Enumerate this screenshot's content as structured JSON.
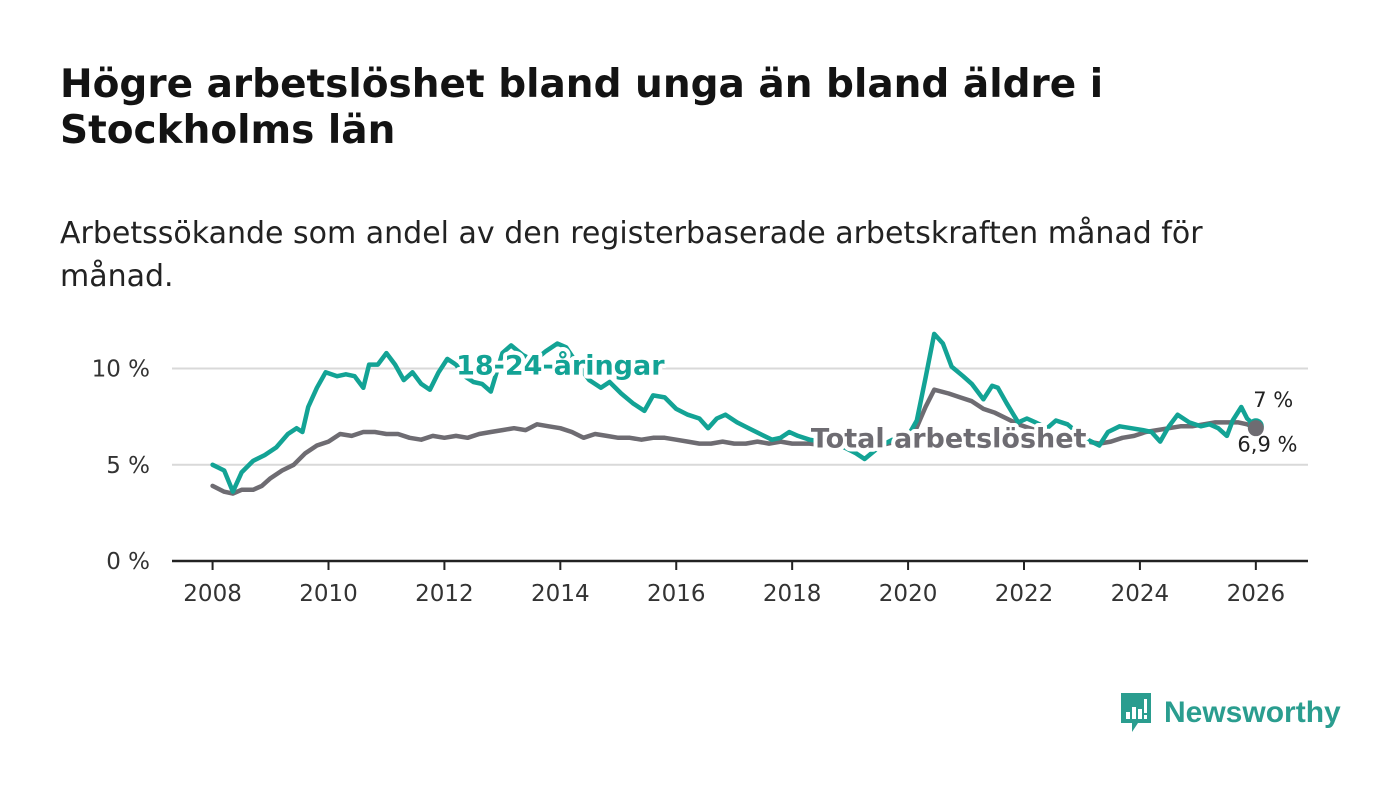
{
  "header": {
    "title": "Högre arbetslöshet bland unga än bland äldre i Stockholms län",
    "subtitle": "Arbetssökande som andel av den registerbaserade arbetskraften månad för månad."
  },
  "brand": {
    "name": "Newsworthy",
    "icon": "bar-chart-bubble-icon",
    "color": "#2a9d8f"
  },
  "colors": {
    "youth": "#13a395",
    "total": "#6e6c72",
    "grid": "#d9d9d9",
    "axis": "#222222"
  },
  "chart_data": {
    "type": "line",
    "title": "Högre arbetslöshet bland unga än bland äldre i Stockholms län",
    "subtitle": "Arbetssökande som andel av den registerbaserade arbetskraften månad för månad.",
    "xlabel": "",
    "ylabel": "",
    "xlim": [
      2007.3,
      2026.9
    ],
    "ylim": [
      0,
      12
    ],
    "grid": true,
    "x_ticks": [
      2008,
      2010,
      2012,
      2014,
      2016,
      2018,
      2020,
      2022,
      2024,
      2026
    ],
    "x_tick_labels": [
      "2008",
      "2010",
      "2012",
      "2014",
      "2016",
      "2018",
      "2020",
      "2022",
      "2024",
      "2026"
    ],
    "y_ticks": [
      0,
      5,
      10
    ],
    "y_tick_labels": [
      "0 %",
      "5 %",
      "10 %"
    ],
    "series": [
      {
        "name": "18-24-åringar",
        "label": "18-24-åringar",
        "end_label": "7 %",
        "end_value": 7.0,
        "points": [
          [
            2008.0,
            5.0
          ],
          [
            2008.2,
            4.7
          ],
          [
            2008.35,
            3.6
          ],
          [
            2008.5,
            4.6
          ],
          [
            2008.7,
            5.2
          ],
          [
            2008.9,
            5.5
          ],
          [
            2009.1,
            5.9
          ],
          [
            2009.3,
            6.6
          ],
          [
            2009.45,
            6.9
          ],
          [
            2009.55,
            6.7
          ],
          [
            2009.65,
            8.0
          ],
          [
            2009.8,
            9.0
          ],
          [
            2009.95,
            9.8
          ],
          [
            2010.15,
            9.6
          ],
          [
            2010.3,
            9.7
          ],
          [
            2010.45,
            9.6
          ],
          [
            2010.6,
            9.0
          ],
          [
            2010.7,
            10.2
          ],
          [
            2010.85,
            10.2
          ],
          [
            2011.0,
            10.8
          ],
          [
            2011.15,
            10.2
          ],
          [
            2011.3,
            9.4
          ],
          [
            2011.45,
            9.8
          ],
          [
            2011.6,
            9.2
          ],
          [
            2011.75,
            8.9
          ],
          [
            2011.9,
            9.8
          ],
          [
            2012.05,
            10.5
          ],
          [
            2012.2,
            10.2
          ],
          [
            2012.35,
            9.6
          ],
          [
            2012.5,
            9.3
          ],
          [
            2012.65,
            9.2
          ],
          [
            2012.8,
            8.8
          ],
          [
            2013.0,
            10.8
          ],
          [
            2013.15,
            11.2
          ],
          [
            2013.35,
            10.7
          ],
          [
            2013.55,
            10.4
          ],
          [
            2013.75,
            10.9
          ],
          [
            2013.95,
            11.3
          ],
          [
            2014.1,
            11.1
          ],
          [
            2014.3,
            10.2
          ],
          [
            2014.5,
            9.4
          ],
          [
            2014.7,
            9.0
          ],
          [
            2014.85,
            9.3
          ],
          [
            2015.05,
            8.7
          ],
          [
            2015.25,
            8.2
          ],
          [
            2015.45,
            7.8
          ],
          [
            2015.6,
            8.6
          ],
          [
            2015.8,
            8.5
          ],
          [
            2016.0,
            7.9
          ],
          [
            2016.2,
            7.6
          ],
          [
            2016.4,
            7.4
          ],
          [
            2016.55,
            6.9
          ],
          [
            2016.7,
            7.4
          ],
          [
            2016.85,
            7.6
          ],
          [
            2017.05,
            7.2
          ],
          [
            2017.25,
            6.9
          ],
          [
            2017.45,
            6.6
          ],
          [
            2017.65,
            6.3
          ],
          [
            2017.8,
            6.4
          ],
          [
            2017.95,
            6.7
          ],
          [
            2018.1,
            6.5
          ],
          [
            2018.3,
            6.3
          ],
          [
            2018.5,
            6.2
          ],
          [
            2018.7,
            6.0
          ],
          [
            2018.9,
            5.9
          ],
          [
            2019.1,
            5.6
          ],
          [
            2019.25,
            5.3
          ],
          [
            2019.45,
            5.8
          ],
          [
            2019.6,
            6.1
          ],
          [
            2019.8,
            6.4
          ],
          [
            2020.0,
            6.5
          ],
          [
            2020.15,
            7.3
          ],
          [
            2020.3,
            9.5
          ],
          [
            2020.45,
            11.8
          ],
          [
            2020.6,
            11.3
          ],
          [
            2020.75,
            10.1
          ],
          [
            2020.95,
            9.6
          ],
          [
            2021.1,
            9.2
          ],
          [
            2021.3,
            8.4
          ],
          [
            2021.45,
            9.1
          ],
          [
            2021.55,
            9.0
          ],
          [
            2021.7,
            8.2
          ],
          [
            2021.9,
            7.2
          ],
          [
            2022.05,
            7.4
          ],
          [
            2022.2,
            7.2
          ],
          [
            2022.4,
            6.9
          ],
          [
            2022.55,
            7.3
          ],
          [
            2022.75,
            7.1
          ],
          [
            2022.95,
            6.6
          ],
          [
            2023.1,
            6.3
          ],
          [
            2023.3,
            6.0
          ],
          [
            2023.45,
            6.7
          ],
          [
            2023.65,
            7.0
          ],
          [
            2023.85,
            6.9
          ],
          [
            2024.05,
            6.8
          ],
          [
            2024.2,
            6.7
          ],
          [
            2024.35,
            6.2
          ],
          [
            2024.5,
            7.0
          ],
          [
            2024.65,
            7.6
          ],
          [
            2024.85,
            7.2
          ],
          [
            2025.05,
            7.0
          ],
          [
            2025.2,
            7.1
          ],
          [
            2025.35,
            6.9
          ],
          [
            2025.5,
            6.5
          ],
          [
            2025.6,
            7.3
          ],
          [
            2025.75,
            8.0
          ],
          [
            2025.85,
            7.4
          ],
          [
            2026.0,
            7.0
          ]
        ]
      },
      {
        "name": "Total arbetslöshet",
        "label": "Total arbetslöshet",
        "end_label": "6,9 %",
        "end_value": 6.9,
        "points": [
          [
            2008.0,
            3.9
          ],
          [
            2008.2,
            3.6
          ],
          [
            2008.35,
            3.5
          ],
          [
            2008.5,
            3.7
          ],
          [
            2008.7,
            3.7
          ],
          [
            2008.85,
            3.9
          ],
          [
            2009.0,
            4.3
          ],
          [
            2009.2,
            4.7
          ],
          [
            2009.4,
            5.0
          ],
          [
            2009.6,
            5.6
          ],
          [
            2009.8,
            6.0
          ],
          [
            2010.0,
            6.2
          ],
          [
            2010.2,
            6.6
          ],
          [
            2010.4,
            6.5
          ],
          [
            2010.6,
            6.7
          ],
          [
            2010.8,
            6.7
          ],
          [
            2011.0,
            6.6
          ],
          [
            2011.2,
            6.6
          ],
          [
            2011.4,
            6.4
          ],
          [
            2011.6,
            6.3
          ],
          [
            2011.8,
            6.5
          ],
          [
            2012.0,
            6.4
          ],
          [
            2012.2,
            6.5
          ],
          [
            2012.4,
            6.4
          ],
          [
            2012.6,
            6.6
          ],
          [
            2012.8,
            6.7
          ],
          [
            2013.0,
            6.8
          ],
          [
            2013.2,
            6.9
          ],
          [
            2013.4,
            6.8
          ],
          [
            2013.6,
            7.1
          ],
          [
            2013.8,
            7.0
          ],
          [
            2014.0,
            6.9
          ],
          [
            2014.2,
            6.7
          ],
          [
            2014.4,
            6.4
          ],
          [
            2014.6,
            6.6
          ],
          [
            2014.8,
            6.5
          ],
          [
            2015.0,
            6.4
          ],
          [
            2015.2,
            6.4
          ],
          [
            2015.4,
            6.3
          ],
          [
            2015.6,
            6.4
          ],
          [
            2015.8,
            6.4
          ],
          [
            2016.0,
            6.3
          ],
          [
            2016.2,
            6.2
          ],
          [
            2016.4,
            6.1
          ],
          [
            2016.6,
            6.1
          ],
          [
            2016.8,
            6.2
          ],
          [
            2017.0,
            6.1
          ],
          [
            2017.2,
            6.1
          ],
          [
            2017.4,
            6.2
          ],
          [
            2017.6,
            6.1
          ],
          [
            2017.8,
            6.2
          ],
          [
            2018.0,
            6.1
          ],
          [
            2018.3,
            6.1
          ],
          [
            2018.6,
            6.0
          ],
          [
            2018.9,
            5.9
          ],
          [
            2019.2,
            5.9
          ],
          [
            2019.5,
            6.0
          ],
          [
            2019.8,
            6.2
          ],
          [
            2020.1,
            6.6
          ],
          [
            2020.3,
            8.0
          ],
          [
            2020.45,
            8.9
          ],
          [
            2020.7,
            8.7
          ],
          [
            2020.9,
            8.5
          ],
          [
            2021.1,
            8.3
          ],
          [
            2021.3,
            7.9
          ],
          [
            2021.5,
            7.7
          ],
          [
            2021.7,
            7.4
          ],
          [
            2021.9,
            7.1
          ],
          [
            2022.1,
            6.9
          ],
          [
            2022.3,
            6.7
          ],
          [
            2022.5,
            6.5
          ],
          [
            2022.7,
            6.4
          ],
          [
            2022.9,
            6.3
          ],
          [
            2023.1,
            6.2
          ],
          [
            2023.3,
            6.1
          ],
          [
            2023.5,
            6.2
          ],
          [
            2023.7,
            6.4
          ],
          [
            2023.9,
            6.5
          ],
          [
            2024.1,
            6.7
          ],
          [
            2024.3,
            6.8
          ],
          [
            2024.5,
            6.9
          ],
          [
            2024.7,
            7.0
          ],
          [
            2024.9,
            7.0
          ],
          [
            2025.1,
            7.1
          ],
          [
            2025.3,
            7.2
          ],
          [
            2025.5,
            7.2
          ],
          [
            2025.7,
            7.2
          ],
          [
            2025.85,
            7.1
          ],
          [
            2026.0,
            6.9
          ]
        ]
      }
    ]
  }
}
